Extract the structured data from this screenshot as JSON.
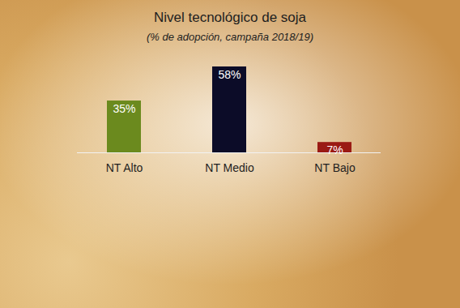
{
  "chart_data": {
    "type": "bar",
    "title": "Nivel tecnológico de soja",
    "subtitle": "(% de adopción, campaña 2018/19)",
    "categories": [
      "NT Alto",
      "NT Medio",
      "NT Bajo"
    ],
    "values": [
      35,
      58,
      7
    ],
    "value_labels": [
      "35%",
      "58%",
      "7%"
    ],
    "colors": [
      "#6b8a1e",
      "#0c0c28",
      "#9a1a14"
    ],
    "data_labels": true,
    "tick_labels": "x"
  }
}
